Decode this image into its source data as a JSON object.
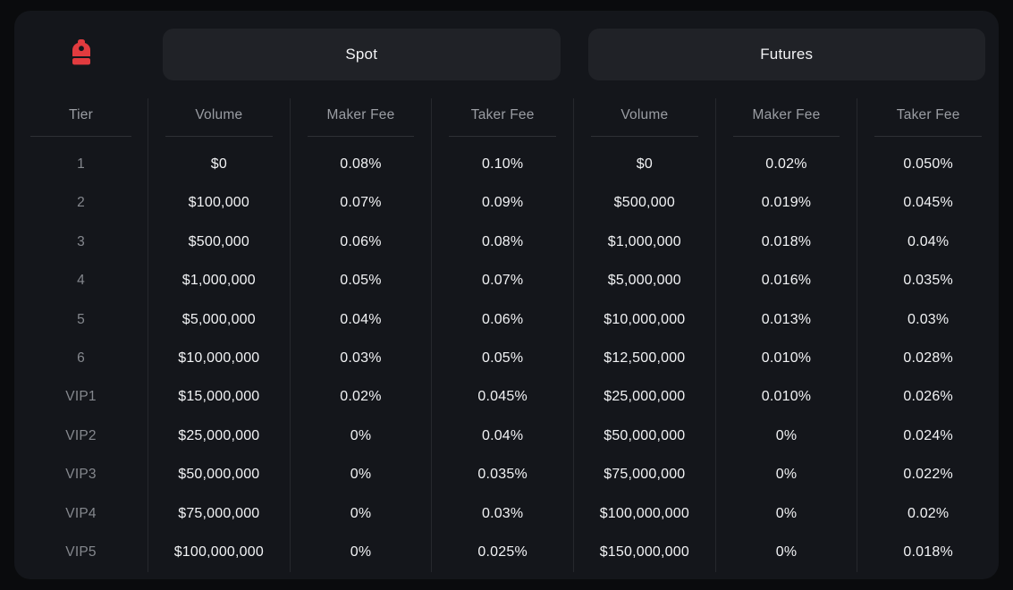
{
  "logo": {
    "name": "backpack-logo",
    "color": "#e23b3f"
  },
  "sections": {
    "spot_label": "Spot",
    "futures_label": "Futures"
  },
  "table": {
    "columns": [
      "Tier",
      "Volume",
      "Maker Fee",
      "Taker Fee",
      "Volume",
      "Maker Fee",
      "Taker Fee"
    ],
    "rows": [
      {
        "tier": "1",
        "cells": [
          "$0",
          "0.08%",
          "0.10%",
          "$0",
          "0.02%",
          "0.050%"
        ]
      },
      {
        "tier": "2",
        "cells": [
          "$100,000",
          "0.07%",
          "0.09%",
          "$500,000",
          "0.019%",
          "0.045%"
        ]
      },
      {
        "tier": "3",
        "cells": [
          "$500,000",
          "0.06%",
          "0.08%",
          "$1,000,000",
          "0.018%",
          "0.04%"
        ]
      },
      {
        "tier": "4",
        "cells": [
          "$1,000,000",
          "0.05%",
          "0.07%",
          "$5,000,000",
          "0.016%",
          "0.035%"
        ]
      },
      {
        "tier": "5",
        "cells": [
          "$5,000,000",
          "0.04%",
          "0.06%",
          "$10,000,000",
          "0.013%",
          "0.03%"
        ]
      },
      {
        "tier": "6",
        "cells": [
          "$10,000,000",
          "0.03%",
          "0.05%",
          "$12,500,000",
          "0.010%",
          "0.028%"
        ]
      },
      {
        "tier": "VIP1",
        "cells": [
          "$15,000,000",
          "0.02%",
          "0.045%",
          "$25,000,000",
          "0.010%",
          "0.026%"
        ]
      },
      {
        "tier": "VIP2",
        "cells": [
          "$25,000,000",
          "0%",
          "0.04%",
          "$50,000,000",
          "0%",
          "0.024%"
        ]
      },
      {
        "tier": "VIP3",
        "cells": [
          "$50,000,000",
          "0%",
          "0.035%",
          "$75,000,000",
          "0%",
          "0.022%"
        ]
      },
      {
        "tier": "VIP4",
        "cells": [
          "$75,000,000",
          "0%",
          "0.03%",
          "$100,000,000",
          "0%",
          "0.02%"
        ]
      },
      {
        "tier": "VIP5",
        "cells": [
          "$100,000,000",
          "0%",
          "0.025%",
          "$150,000,000",
          "0%",
          "0.018%"
        ]
      }
    ]
  },
  "colors": {
    "page_bg": "#0a0b0d",
    "card_bg": "#14161b",
    "pill_bg": "#202227",
    "divider": "#26282d",
    "header_text": "#9a9da3",
    "tier_text": "#85888e",
    "value_text": "#f2f3f5",
    "accent_red": "#e23b3f"
  }
}
